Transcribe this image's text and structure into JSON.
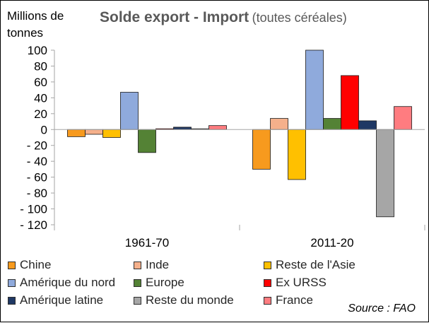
{
  "chart_data": {
    "type": "bar",
    "title": "Solde export - Import",
    "subtitle": "(toutes céréales)",
    "ylabel": "Millions de tonnes",
    "ylim": [
      -120,
      100
    ],
    "yticks": [
      100,
      80,
      60,
      40,
      20,
      0,
      -20,
      -40,
      -60,
      -80,
      -100,
      -120
    ],
    "ytick_labels": [
      "100",
      "80",
      "60",
      "40",
      "20",
      "0",
      "- 20",
      "- 40",
      "- 60",
      "- 80",
      "- 100",
      "- 120"
    ],
    "categories": [
      "1961-70",
      "2011-20"
    ],
    "grid": false,
    "legend_position": "bottom",
    "series": [
      {
        "name": "Chine",
        "color": "#f79a1e",
        "values": [
          -9,
          -50
        ]
      },
      {
        "name": "Inde",
        "color": "#f5b08b",
        "values": [
          -6,
          14
        ]
      },
      {
        "name": "Reste de l'Asie",
        "color": "#ffc000",
        "values": [
          -10,
          -63
        ]
      },
      {
        "name": "Amérique du nord",
        "color": "#8faadc",
        "values": [
          47,
          101
        ]
      },
      {
        "name": "Europe",
        "color": "#548235",
        "values": [
          -29,
          14
        ]
      },
      {
        "name": "Ex URSS",
        "color": "#ff0000",
        "values": [
          1,
          68
        ]
      },
      {
        "name": "Amérique latine",
        "color": "#1f3864",
        "values": [
          3,
          11
        ]
      },
      {
        "name": "Reste du monde",
        "color": "#a6a6a6",
        "values": [
          1,
          -110
        ]
      },
      {
        "name": "France",
        "color": "#ff7c80",
        "values": [
          5,
          29
        ]
      }
    ]
  },
  "source": "Source : FAO"
}
